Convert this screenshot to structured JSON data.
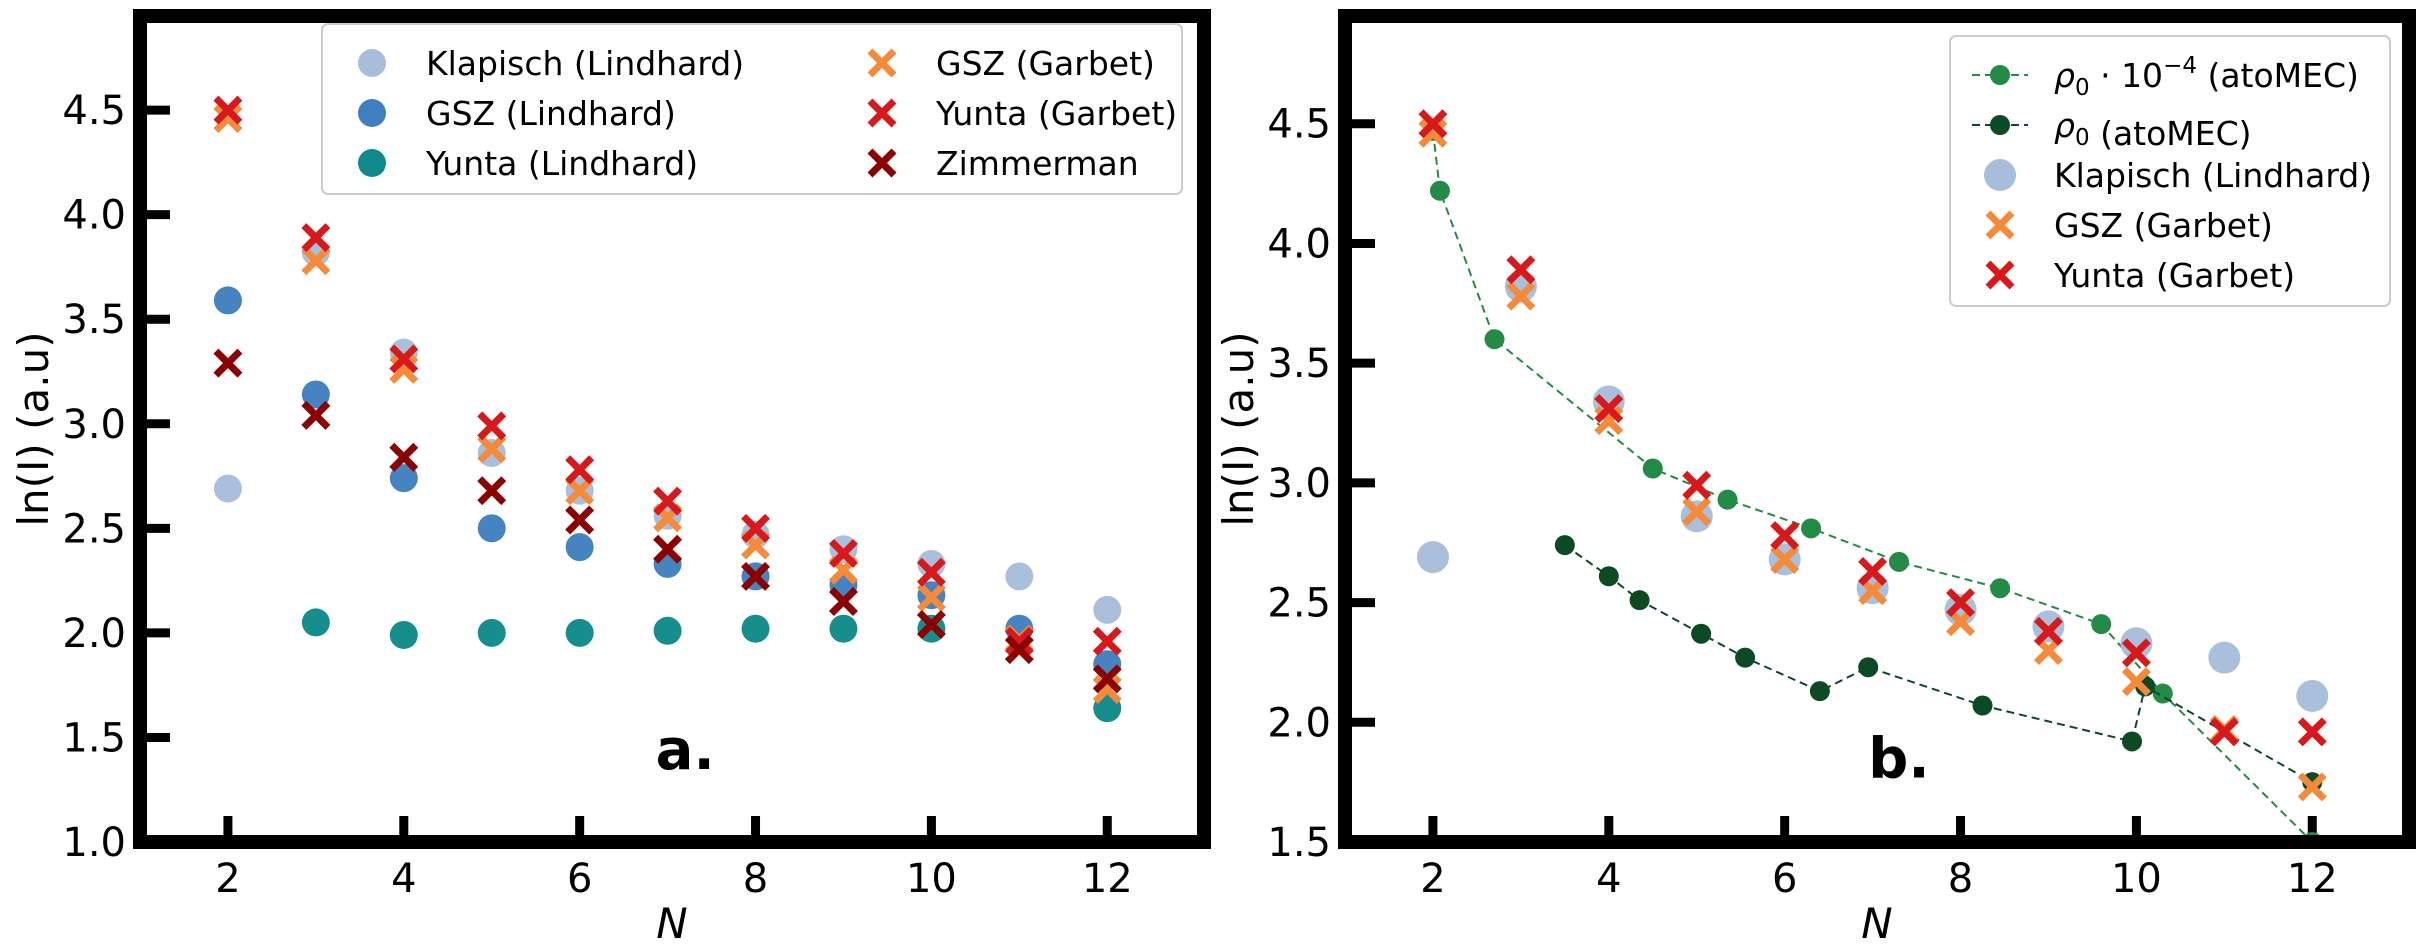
{
  "chart_data": [
    {
      "type": "scatter",
      "panel_label": "a.",
      "xlabel": "N",
      "ylabel": "ln(I) (a.u)",
      "xlim": [
        1,
        13.1
      ],
      "ylim": [
        1.0,
        4.95
      ],
      "xticks": [
        2,
        4,
        6,
        8,
        10,
        12
      ],
      "xtick_labels": [
        "2",
        "4",
        "6",
        "8",
        "10",
        "12"
      ],
      "yticks": [
        1.0,
        1.5,
        2.0,
        2.5,
        3.0,
        3.5,
        4.0,
        4.5
      ],
      "ytick_labels": [
        "1.0",
        "1.5",
        "2.0",
        "2.5",
        "3.0",
        "3.5",
        "4.0",
        "4.5"
      ],
      "legend_position": "top-right",
      "legend_columns": 2,
      "series": [
        {
          "name": "Klapisch (Lindhard)",
          "marker": "circle",
          "color": "#a6bddb",
          "x": [
            2,
            3,
            4,
            5,
            6,
            7,
            8,
            9,
            10,
            11,
            12
          ],
          "y": [
            2.69,
            3.82,
            3.34,
            2.86,
            2.68,
            2.56,
            2.47,
            2.4,
            2.33,
            2.27,
            2.11
          ]
        },
        {
          "name": "GSZ (Lindhard)",
          "marker": "circle",
          "color": "#3f7fbf",
          "x": [
            2,
            3,
            4,
            5,
            6,
            7,
            8,
            9,
            10,
            11,
            12
          ],
          "y": [
            3.59,
            3.14,
            2.74,
            2.5,
            2.41,
            2.33,
            2.27,
            2.23,
            2.18,
            2.02,
            1.85
          ]
        },
        {
          "name": "Yunta (Lindhard)",
          "marker": "circle",
          "color": "#0e8a8a",
          "x": [
            3,
            4,
            5,
            6,
            7,
            8,
            9,
            10,
            12
          ],
          "y": [
            2.05,
            1.99,
            2.0,
            2.0,
            2.01,
            2.02,
            2.02,
            2.02,
            1.64
          ]
        },
        {
          "name": "GSZ (Garbet)",
          "marker": "x",
          "color": "#f48a3a",
          "x": [
            2,
            3,
            4,
            5,
            6,
            7,
            8,
            9,
            10,
            11,
            12
          ],
          "y": [
            4.46,
            3.78,
            3.26,
            2.88,
            2.68,
            2.55,
            2.42,
            2.3,
            2.17,
            1.97,
            1.73
          ]
        },
        {
          "name": "Yunta (Garbet)",
          "marker": "x",
          "color": "#d7191c",
          "x": [
            2,
            3,
            4,
            5,
            6,
            7,
            8,
            9,
            10,
            11,
            12
          ],
          "y": [
            4.5,
            3.89,
            3.31,
            2.99,
            2.78,
            2.63,
            2.5,
            2.38,
            2.29,
            1.96,
            1.96
          ]
        },
        {
          "name": "Zimmerman",
          "marker": "x",
          "color": "#8b0000",
          "x": [
            2,
            3,
            4,
            5,
            6,
            7,
            8,
            9,
            10,
            11,
            12
          ],
          "y": [
            3.29,
            3.04,
            2.84,
            2.68,
            2.54,
            2.4,
            2.27,
            2.15,
            2.04,
            1.92,
            1.78
          ]
        }
      ]
    },
    {
      "type": "scatter",
      "panel_label": "b.",
      "xlabel": "N",
      "ylabel": "ln(I) (a.u)",
      "xlim": [
        1,
        13.1
      ],
      "ylim": [
        1.5,
        4.95
      ],
      "xticks": [
        2,
        4,
        6,
        8,
        10,
        12
      ],
      "xtick_labels": [
        "2",
        "4",
        "6",
        "8",
        "10",
        "12"
      ],
      "yticks": [
        1.5,
        2.0,
        2.5,
        3.0,
        3.5,
        4.0,
        4.5
      ],
      "ytick_labels": [
        "1.5",
        "2.0",
        "2.5",
        "3.0",
        "3.5",
        "4.0",
        "4.5"
      ],
      "legend_position": "top-right",
      "legend_columns": 1,
      "series": [
        {
          "name": "ρ0 · 10^-4 (atoMEC)",
          "legend_main": "ρ",
          "legend_sub": "0",
          "legend_mid": " · 10",
          "legend_sup": "−4",
          "legend_tail": " (atoMEC)",
          "marker": "circle-line",
          "color": "#238b45",
          "x": [
            2.0,
            2.08,
            2.7,
            4.5,
            5.35,
            6.3,
            7.3,
            8.45,
            9.6,
            10.3,
            12.0
          ],
          "y": [
            4.47,
            4.22,
            3.6,
            3.06,
            2.93,
            2.81,
            2.67,
            2.56,
            2.41,
            2.12,
            1.5
          ]
        },
        {
          "name": "ρ0 (atoMEC)",
          "legend_main": "ρ",
          "legend_sub": "0",
          "legend_mid": "",
          "legend_sup": "",
          "legend_tail": " (atoMEC)",
          "marker": "circle-line",
          "color": "#0b4a22",
          "x": [
            3.5,
            4.0,
            4.35,
            5.05,
            5.55,
            6.4,
            6.95,
            8.25,
            9.95,
            10.1,
            12.0
          ],
          "y": [
            2.74,
            2.61,
            2.51,
            2.37,
            2.27,
            2.13,
            2.23,
            2.07,
            1.92,
            2.15,
            1.75
          ]
        },
        {
          "name": "Klapisch (Lindhard)",
          "marker": "circle-large",
          "color": "#a6bddb",
          "x": [
            2,
            3,
            4,
            5,
            6,
            7,
            8,
            9,
            10,
            11,
            12
          ],
          "y": [
            2.69,
            3.82,
            3.34,
            2.86,
            2.68,
            2.56,
            2.47,
            2.4,
            2.33,
            2.27,
            2.11
          ]
        },
        {
          "name": "GSZ (Garbet)",
          "marker": "x",
          "color": "#f48a3a",
          "x": [
            2,
            3,
            4,
            5,
            6,
            7,
            8,
            9,
            10,
            11,
            12
          ],
          "y": [
            4.46,
            3.78,
            3.26,
            2.88,
            2.68,
            2.55,
            2.42,
            2.3,
            2.17,
            1.97,
            1.73
          ]
        },
        {
          "name": "Yunta (Garbet)",
          "marker": "x",
          "color": "#d7191c",
          "x": [
            2,
            3,
            4,
            5,
            6,
            7,
            8,
            9,
            10,
            11,
            12
          ],
          "y": [
            4.5,
            3.89,
            3.31,
            2.99,
            2.78,
            2.63,
            2.5,
            2.38,
            2.29,
            1.96,
            1.96
          ]
        }
      ]
    }
  ]
}
